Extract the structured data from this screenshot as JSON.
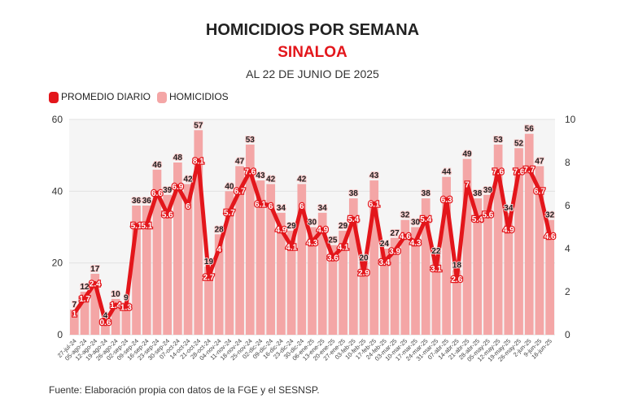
{
  "title": "HOMICIDIOS POR SEMANA",
  "subtitle": "SINALOA",
  "date": "AL 22 DE JUNIO DE 2025",
  "footer": "Fuente: Elaboración propia con datos de la FGE y el SESNSP.",
  "chart_data": {
    "type": "bar+line",
    "legend_position": "top-left",
    "categories": [
      "27-jul-24",
      "05-ago-24",
      "12-ago-24",
      "19-ago-24",
      "26-ago-24",
      "02-sep-24",
      "09-sep-24",
      "16-sep-24",
      "23-sep-24",
      "30-sep-24",
      "07-oct-24",
      "14-oct-24",
      "21-oct-24",
      "28-oct-24",
      "04-nov-24",
      "11-nov-24",
      "18-nov-24",
      "25-nov-24",
      "02-dic-24",
      "09-dic-24",
      "16-dic-24",
      "23-dic-24",
      "30-dic-24",
      "06-ene-25",
      "13-ene-25",
      "20-ene-25",
      "27-ene-25",
      "03-feb-25",
      "10-feb-25",
      "17-feb-25",
      "24-feb-25",
      "03-mar-25",
      "10-mar-25",
      "17-mar-25",
      "24-mar-25",
      "31-mar-25",
      "07-abr-25",
      "14-abr-25",
      "21-abr-25",
      "28-abr-25",
      "05-may-25",
      "12-may-25",
      "19-may-25",
      "26-may-25",
      "2-jun-25",
      "9-jun-25",
      "16-jun-25"
    ],
    "series": [
      {
        "name": "HOMICIDIOS",
        "type": "bar",
        "axis": "left",
        "color": "#f4a6a6",
        "values": [
          7,
          12,
          17,
          4,
          10,
          9,
          36,
          36,
          46,
          39,
          48,
          42,
          57,
          19,
          28,
          40,
          47,
          53,
          43,
          42,
          34,
          29,
          42,
          30,
          34,
          25,
          29,
          38,
          20,
          43,
          24,
          27,
          32,
          30,
          38,
          22,
          44,
          18,
          49,
          38,
          39,
          53,
          34,
          52,
          56,
          47,
          32
        ]
      },
      {
        "name": "PROMEDIO DIARIO",
        "type": "line",
        "axis": "right",
        "color": "#e3161b",
        "values": [
          1,
          1.7,
          2.4,
          0.6,
          1.4,
          1.3,
          5.1,
          5.1,
          6.6,
          5.6,
          6.9,
          6,
          8.1,
          2.7,
          4,
          5.7,
          6.7,
          7.6,
          6.1,
          6,
          4.9,
          4.1,
          6,
          4.3,
          4.9,
          3.6,
          4.1,
          5.4,
          2.9,
          6.1,
          3.4,
          3.9,
          4.6,
          4.3,
          5.4,
          3.1,
          6.3,
          2.6,
          7,
          5.4,
          5.6,
          7.6,
          4.9,
          7.6,
          7.7,
          6.7,
          4.6
        ]
      }
    ],
    "ylim_left": [
      0,
      60
    ],
    "yticks_left": [
      "0",
      "20",
      "40",
      "60"
    ],
    "ylim_right": [
      0,
      10
    ],
    "yticks_right": [
      "0",
      "2",
      "4",
      "6",
      "8",
      "10"
    ],
    "grid": true
  }
}
